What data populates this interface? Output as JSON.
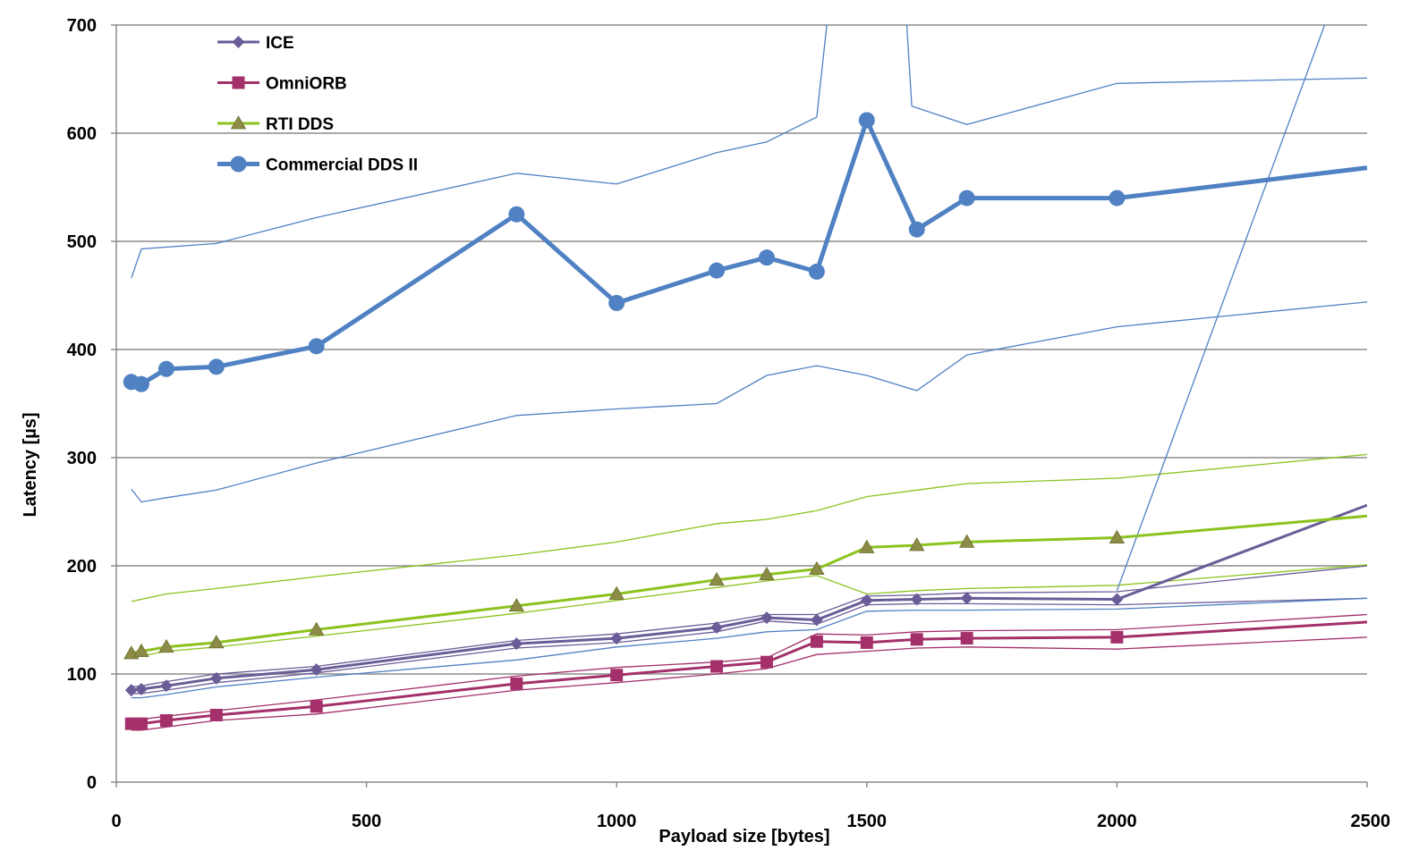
{
  "chart_data": {
    "type": "line",
    "xlabel": "Payload size [bytes]",
    "ylabel": "Latency [µs]",
    "xlim": [
      0,
      2500
    ],
    "ylim": [
      0,
      700
    ],
    "x_ticks": [
      0,
      500,
      1000,
      1500,
      2000,
      2500
    ],
    "y_ticks": [
      0,
      100,
      200,
      300,
      400,
      500,
      600,
      700
    ],
    "grid": "horizontal",
    "legend_position": "top-left",
    "series": [
      {
        "name": "ICE",
        "color": "#6a5c97",
        "marker": "diamond",
        "points": [
          [
            30,
            85
          ],
          [
            50,
            86
          ],
          [
            100,
            89
          ],
          [
            200,
            96
          ],
          [
            400,
            104
          ],
          [
            800,
            128
          ],
          [
            1000,
            133
          ],
          [
            1200,
            143
          ],
          [
            1300,
            152
          ],
          [
            1400,
            150
          ],
          [
            1500,
            168
          ],
          [
            1600,
            169
          ],
          [
            1700,
            170
          ],
          [
            2000,
            169
          ],
          [
            2500,
            256
          ]
        ]
      },
      {
        "name": "OmniORB",
        "color": "#a3306a",
        "marker": "square",
        "points": [
          [
            30,
            54
          ],
          [
            50,
            54
          ],
          [
            100,
            57
          ],
          [
            200,
            62
          ],
          [
            400,
            70
          ],
          [
            800,
            91
          ],
          [
            1000,
            99
          ],
          [
            1200,
            107
          ],
          [
            1300,
            111
          ],
          [
            1400,
            130
          ],
          [
            1500,
            129
          ],
          [
            1600,
            132
          ],
          [
            1700,
            133
          ],
          [
            2000,
            134
          ],
          [
            2500,
            148
          ]
        ]
      },
      {
        "name": "RTI DDS",
        "color": "#8cc21e",
        "marker": "triangle",
        "points": [
          [
            30,
            119
          ],
          [
            50,
            121
          ],
          [
            100,
            125
          ],
          [
            200,
            129
          ],
          [
            400,
            141
          ],
          [
            800,
            163
          ],
          [
            1000,
            174
          ],
          [
            1200,
            187
          ],
          [
            1300,
            192
          ],
          [
            1400,
            197
          ],
          [
            1500,
            217
          ],
          [
            1600,
            219
          ],
          [
            1700,
            222
          ],
          [
            2000,
            226
          ],
          [
            2500,
            246
          ]
        ]
      },
      {
        "name": "Commercial DDS II",
        "color": "#4f81c3",
        "marker": "circle",
        "points": [
          [
            30,
            370
          ],
          [
            50,
            368
          ],
          [
            100,
            382
          ],
          [
            200,
            384
          ],
          [
            400,
            403
          ],
          [
            800,
            525
          ],
          [
            1000,
            443
          ],
          [
            1200,
            473
          ],
          [
            1300,
            485
          ],
          [
            1400,
            472
          ],
          [
            1500,
            612
          ],
          [
            1600,
            511
          ],
          [
            1700,
            540
          ],
          [
            2000,
            540
          ],
          [
            2500,
            568
          ]
        ]
      }
    ],
    "bounds": [
      {
        "color": "#6a5c97",
        "points": [
          [
            30,
            82
          ],
          [
            50,
            82
          ],
          [
            100,
            85
          ],
          [
            200,
            92
          ],
          [
            400,
            101
          ],
          [
            800,
            124
          ],
          [
            1000,
            129
          ],
          [
            1200,
            139
          ],
          [
            1300,
            149
          ],
          [
            1400,
            146
          ],
          [
            1500,
            164
          ],
          [
            1600,
            165
          ],
          [
            1700,
            165
          ],
          [
            2000,
            164
          ],
          [
            2500,
            170
          ]
        ]
      },
      {
        "color": "#6a5c97",
        "points": [
          [
            30,
            88
          ],
          [
            50,
            89
          ],
          [
            100,
            93
          ],
          [
            200,
            100
          ],
          [
            400,
            107
          ],
          [
            800,
            131
          ],
          [
            1000,
            137
          ],
          [
            1200,
            147
          ],
          [
            1300,
            155
          ],
          [
            1400,
            155
          ],
          [
            1500,
            172
          ],
          [
            1600,
            173
          ],
          [
            1700,
            175
          ],
          [
            2000,
            176
          ],
          [
            2500,
            200
          ]
        ]
      },
      {
        "color": "#a3306a",
        "points": [
          [
            30,
            48
          ],
          [
            50,
            48
          ],
          [
            100,
            51
          ],
          [
            200,
            57
          ],
          [
            400,
            63
          ],
          [
            800,
            85
          ],
          [
            1000,
            92
          ],
          [
            1200,
            100
          ],
          [
            1300,
            105
          ],
          [
            1400,
            118
          ],
          [
            1500,
            121
          ],
          [
            1600,
            124
          ],
          [
            1700,
            125
          ],
          [
            2000,
            123
          ],
          [
            2500,
            134
          ]
        ]
      },
      {
        "color": "#a3306a",
        "points": [
          [
            30,
            58
          ],
          [
            50,
            58
          ],
          [
            100,
            61
          ],
          [
            200,
            66
          ],
          [
            400,
            76
          ],
          [
            800,
            98
          ],
          [
            1000,
            106
          ],
          [
            1200,
            111
          ],
          [
            1300,
            115
          ],
          [
            1400,
            137
          ],
          [
            1500,
            136
          ],
          [
            1600,
            139
          ],
          [
            1700,
            140
          ],
          [
            2000,
            141
          ],
          [
            2500,
            155
          ]
        ]
      },
      {
        "color": "#8cc21e",
        "points": [
          [
            30,
            167
          ],
          [
            100,
            174
          ],
          [
            200,
            179
          ],
          [
            400,
            190
          ],
          [
            800,
            210
          ],
          [
            1000,
            222
          ],
          [
            1200,
            239
          ],
          [
            1300,
            243
          ],
          [
            1400,
            251
          ],
          [
            1500,
            264
          ],
          [
            1600,
            270
          ],
          [
            1700,
            276
          ],
          [
            2000,
            281
          ],
          [
            2500,
            303
          ]
        ]
      },
      {
        "color": "#8cc21e",
        "points": [
          [
            30,
            115
          ],
          [
            100,
            121
          ],
          [
            200,
            125
          ],
          [
            400,
            135
          ],
          [
            800,
            156
          ],
          [
            1000,
            168
          ],
          [
            1200,
            180
          ],
          [
            1300,
            186
          ],
          [
            1400,
            191
          ],
          [
            1500,
            174
          ],
          [
            1600,
            177
          ],
          [
            1700,
            179
          ],
          [
            2000,
            182
          ],
          [
            2500,
            201
          ]
        ]
      },
      {
        "color": "#4f81c3",
        "points": [
          [
            30,
            466
          ],
          [
            50,
            493
          ],
          [
            200,
            498
          ],
          [
            400,
            522
          ],
          [
            800,
            563
          ],
          [
            1000,
            553
          ],
          [
            1200,
            582
          ],
          [
            1300,
            592
          ],
          [
            1400,
            615
          ],
          [
            1420,
            700
          ]
        ]
      },
      {
        "color": "#4f81c3",
        "points": [
          [
            1580,
            700
          ],
          [
            1590,
            625
          ],
          [
            1700,
            608
          ],
          [
            2000,
            646
          ],
          [
            2500,
            651
          ]
        ]
      },
      {
        "color": "#4f81c3",
        "points": [
          [
            30,
            271
          ],
          [
            50,
            259
          ],
          [
            100,
            263
          ],
          [
            200,
            270
          ],
          [
            400,
            295
          ],
          [
            800,
            339
          ],
          [
            1000,
            345
          ],
          [
            1200,
            350
          ],
          [
            1300,
            376
          ],
          [
            1400,
            385
          ],
          [
            1500,
            376
          ],
          [
            1600,
            362
          ],
          [
            1700,
            395
          ],
          [
            2000,
            421
          ],
          [
            2500,
            444
          ]
        ]
      },
      {
        "color": "#4f81c3",
        "points": [
          [
            30,
            78
          ],
          [
            50,
            78
          ],
          [
            100,
            81
          ],
          [
            200,
            88
          ],
          [
            400,
            97
          ],
          [
            800,
            113
          ],
          [
            1000,
            125
          ],
          [
            1200,
            133
          ],
          [
            1300,
            139
          ],
          [
            1400,
            141
          ],
          [
            1500,
            158
          ],
          [
            1600,
            159
          ],
          [
            1700,
            159
          ],
          [
            2000,
            160
          ],
          [
            2500,
            170
          ]
        ]
      },
      {
        "color": "#4f81c3",
        "points": [
          [
            2000,
            177
          ],
          [
            2415,
            700
          ]
        ]
      }
    ]
  }
}
